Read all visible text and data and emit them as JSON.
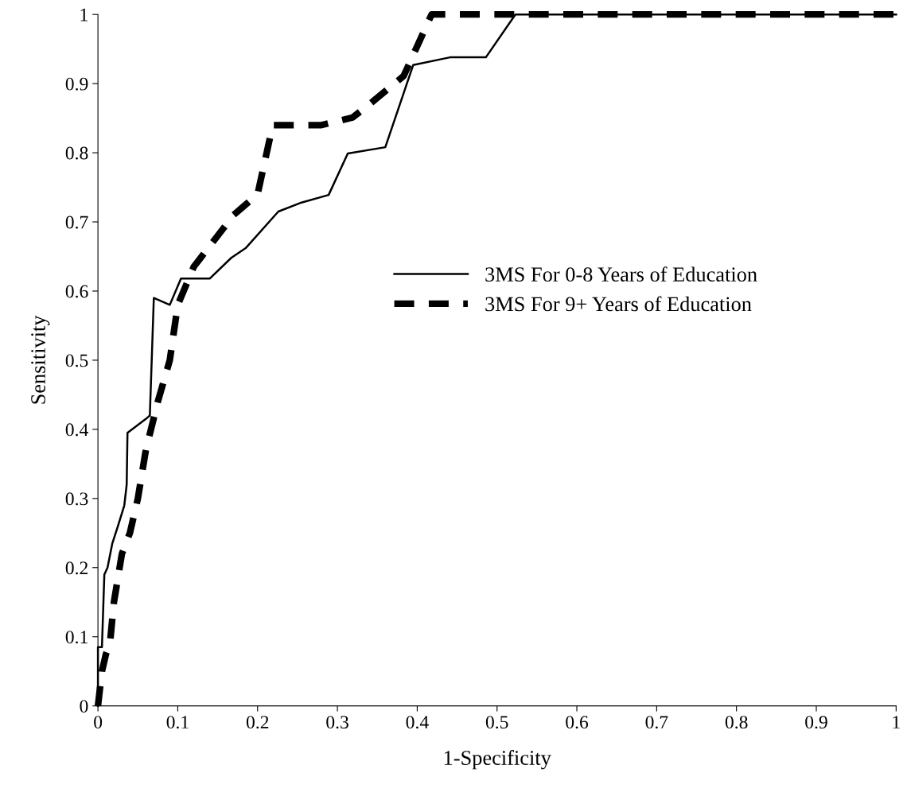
{
  "chart_data": {
    "type": "line",
    "xlabel": "1-Specificity",
    "ylabel": "Sensitivity",
    "xlim": [
      0,
      1
    ],
    "ylim": [
      0,
      1
    ],
    "xticks": [
      0,
      0.1,
      0.2,
      0.3,
      0.4,
      0.5,
      0.6,
      0.7,
      0.8,
      0.9,
      1
    ],
    "yticks": [
      0,
      0.1,
      0.2,
      0.3,
      0.4,
      0.5,
      0.6,
      0.7,
      0.8,
      0.9,
      1
    ],
    "grid": false,
    "legend": "right",
    "marker": "none",
    "series": [
      {
        "name": "3MS For 0-8 Years of Education",
        "color": "#000000",
        "line_style": "solid",
        "x": [
          0,
          0,
          0.005,
          0.008,
          0.012,
          0.018,
          0.025,
          0.033,
          0.036,
          0.037,
          0.06,
          0.065,
          0.07,
          0.09,
          0.104,
          0.14,
          0.167,
          0.185,
          0.226,
          0.255,
          0.289,
          0.313,
          0.36,
          0.395,
          0.441,
          0.486,
          0.523,
          1
        ],
        "values": [
          0,
          0.085,
          0.085,
          0.19,
          0.2,
          0.235,
          0.26,
          0.29,
          0.32,
          0.395,
          0.415,
          0.42,
          0.59,
          0.58,
          0.618,
          0.618,
          0.648,
          0.662,
          0.715,
          0.728,
          0.739,
          0.799,
          0.808,
          0.927,
          0.938,
          0.938,
          1,
          1
        ]
      },
      {
        "name": "3MS For 9+ Years of Education",
        "color": "#000000",
        "line_style": "dashed",
        "x": [
          0,
          0.005,
          0.01,
          0.015,
          0.02,
          0.03,
          0.04,
          0.05,
          0.06,
          0.075,
          0.09,
          0.1,
          0.12,
          0.17,
          0.2,
          0.219,
          0.28,
          0.319,
          0.34,
          0.383,
          0.418,
          1
        ],
        "values": [
          0,
          0.05,
          0.075,
          0.09,
          0.15,
          0.22,
          0.25,
          0.3,
          0.37,
          0.44,
          0.5,
          0.58,
          0.635,
          0.71,
          0.74,
          0.84,
          0.84,
          0.851,
          0.87,
          0.911,
          1,
          1
        ]
      }
    ]
  }
}
